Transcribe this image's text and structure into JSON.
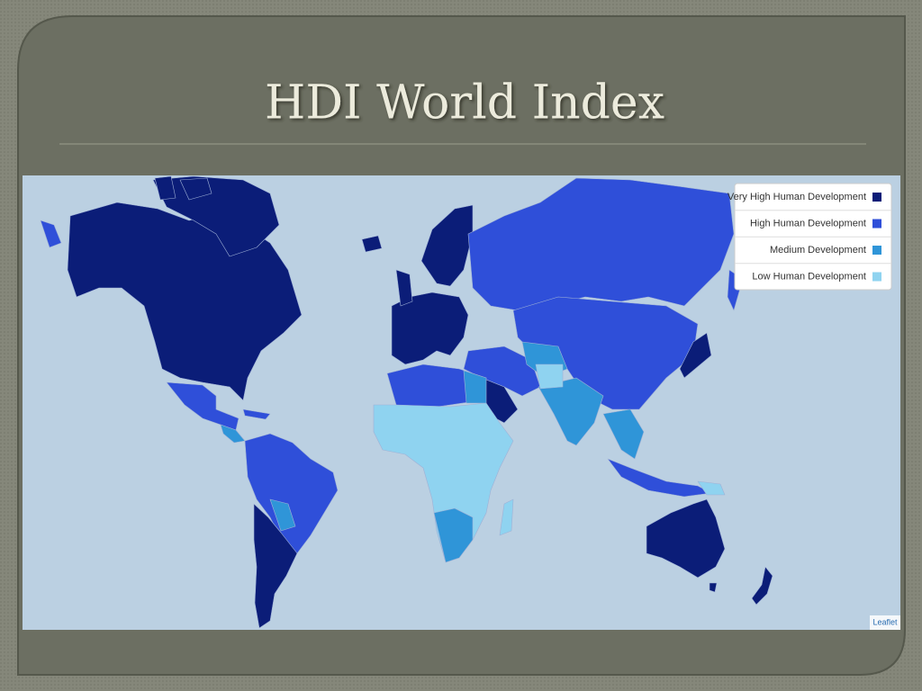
{
  "header": {
    "title": "HDI World Index"
  },
  "map": {
    "legend": [
      {
        "label": "Very High Human Development",
        "color": "#0b1d78"
      },
      {
        "label": "High Human Development",
        "color": "#2f4fd9"
      },
      {
        "label": "Medium Development",
        "color": "#2f95d8"
      },
      {
        "label": "Low Human Development",
        "color": "#8fd3f0"
      }
    ],
    "attribution": "Leaflet"
  }
}
